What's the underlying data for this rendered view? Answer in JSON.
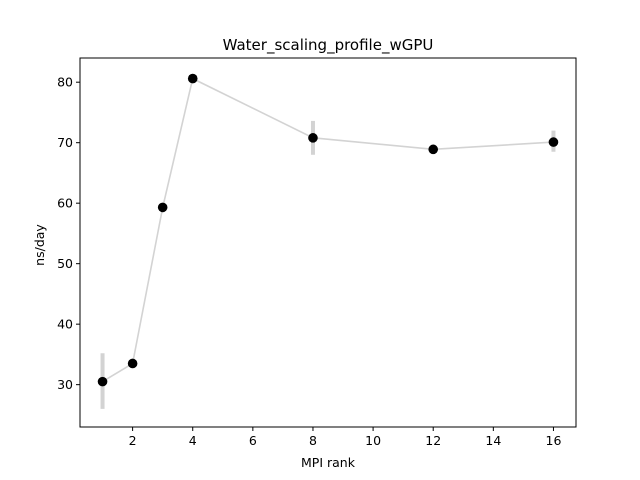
{
  "chart_data": {
    "type": "scatter",
    "title": "Water_scaling_profile_wGPU",
    "xlabel": "MPI rank",
    "ylabel": "ns/day",
    "xlim": [
      0.25,
      16.75
    ],
    "ylim": [
      23.0,
      84.0
    ],
    "xticks": [
      2,
      4,
      6,
      8,
      10,
      12,
      14,
      16
    ],
    "yticks": [
      30,
      40,
      50,
      60,
      70,
      80
    ],
    "grid": false,
    "series": [
      {
        "x": [
          1,
          2,
          3,
          4,
          8,
          12,
          16
        ],
        "y": [
          30.5,
          33.5,
          59.3,
          80.6,
          70.8,
          68.9,
          70.1
        ],
        "yerr_low": [
          26.0,
          33.0,
          59.3,
          80.6,
          68.0,
          68.9,
          68.5
        ],
        "yerr_high": [
          35.2,
          34.0,
          59.3,
          80.6,
          73.6,
          68.9,
          72.0
        ]
      }
    ],
    "colors": {
      "marker": "#000000",
      "line": "#d3d3d3",
      "errorbar": "#d3d3d3"
    }
  }
}
